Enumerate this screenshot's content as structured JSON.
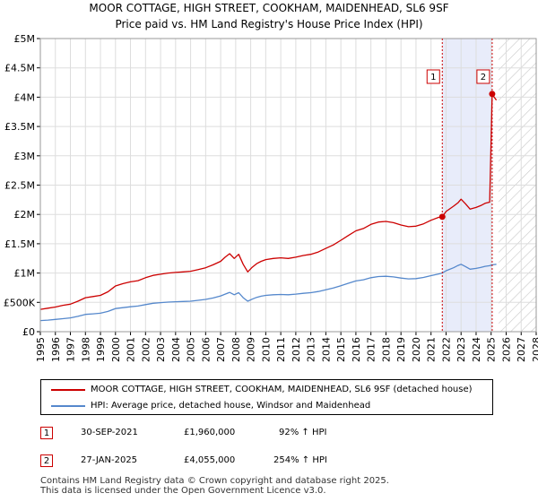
{
  "chart_data": {
    "type": "line",
    "title": "MOOR COTTAGE, HIGH STREET, COOKHAM, MAIDENHEAD, SL6 9SF",
    "subtitle": "Price paid vs. HM Land Registry's House Price Index (HPI)",
    "xlabel": "",
    "ylabel": "",
    "xlim": [
      1995,
      2028
    ],
    "ylim": [
      0,
      5000000
    ],
    "x_ticks": [
      "1995",
      "1996",
      "1997",
      "1998",
      "1999",
      "2000",
      "2001",
      "2002",
      "2003",
      "2004",
      "2005",
      "2006",
      "2007",
      "2008",
      "2009",
      "2010",
      "2011",
      "2012",
      "2013",
      "2014",
      "2015",
      "2016",
      "2017",
      "2018",
      "2019",
      "2020",
      "2021",
      "2022",
      "2023",
      "2024",
      "2025",
      "2026",
      "2027",
      "2028"
    ],
    "y_ticks": [
      {
        "value": 0,
        "label": "£0"
      },
      {
        "value": 500000,
        "label": "£500K"
      },
      {
        "value": 1000000,
        "label": "£1M"
      },
      {
        "value": 1500000,
        "label": "£1.5M"
      },
      {
        "value": 2000000,
        "label": "£2M"
      },
      {
        "value": 2500000,
        "label": "£2.5M"
      },
      {
        "value": 3000000,
        "label": "£3M"
      },
      {
        "value": 3500000,
        "label": "£3.5M"
      },
      {
        "value": 4000000,
        "label": "£4M"
      },
      {
        "value": 4500000,
        "label": "£4.5M"
      },
      {
        "value": 5000000,
        "label": "£5M"
      }
    ],
    "grid": true,
    "shaded_region": {
      "x_start": 2021.75,
      "x_end": 2025.07,
      "color": "#e8ecfa"
    },
    "forecast_hatch": {
      "x_start": 2025.5,
      "x_end": 2028
    },
    "series": [
      {
        "name": "MOOR COTTAGE, HIGH STREET, COOKHAM, MAIDENHEAD, SL6 9SF (detached house)",
        "color": "#cc0000",
        "x": [
          1995,
          1995.5,
          1996,
          1996.5,
          1997,
          1997.5,
          1998,
          1998.5,
          1999,
          1999.5,
          2000,
          2000.5,
          2001,
          2001.5,
          2002,
          2002.5,
          2003,
          2003.5,
          2004,
          2004.5,
          2005,
          2005.5,
          2006,
          2006.5,
          2007,
          2007.3,
          2007.6,
          2007.9,
          2008.2,
          2008.5,
          2008.8,
          2009.1,
          2009.4,
          2009.7,
          2010,
          2010.5,
          2011,
          2011.5,
          2012,
          2012.5,
          2013,
          2013.5,
          2014,
          2014.5,
          2015,
          2015.5,
          2016,
          2016.5,
          2017,
          2017.5,
          2018,
          2018.5,
          2019,
          2019.5,
          2020,
          2020.5,
          2021,
          2021.5,
          2021.75,
          2022,
          2022.5,
          2022.8,
          2023,
          2023.3,
          2023.6,
          2024,
          2024.3,
          2024.6,
          2024.9,
          2025.07,
          2025.2,
          2025.35
        ],
        "y": [
          380000,
          400000,
          420000,
          450000,
          470000,
          520000,
          580000,
          600000,
          620000,
          680000,
          780000,
          820000,
          850000,
          870000,
          920000,
          960000,
          980000,
          1000000,
          1010000,
          1020000,
          1030000,
          1060000,
          1090000,
          1140000,
          1200000,
          1270000,
          1330000,
          1250000,
          1320000,
          1150000,
          1020000,
          1100000,
          1160000,
          1200000,
          1230000,
          1250000,
          1260000,
          1250000,
          1270000,
          1300000,
          1320000,
          1360000,
          1420000,
          1480000,
          1560000,
          1640000,
          1720000,
          1760000,
          1830000,
          1870000,
          1880000,
          1860000,
          1820000,
          1790000,
          1800000,
          1840000,
          1900000,
          1950000,
          1960000,
          2050000,
          2140000,
          2200000,
          2260000,
          2180000,
          2090000,
          2120000,
          2150000,
          2190000,
          2210000,
          4055000,
          4000000,
          3950000
        ]
      },
      {
        "name": "HPI: Average price, detached house, Windsor and Maidenhead",
        "color": "#5588cc",
        "x": [
          1995,
          1995.5,
          1996,
          1996.5,
          1997,
          1997.5,
          1998,
          1998.5,
          1999,
          1999.5,
          2000,
          2000.5,
          2001,
          2001.5,
          2002,
          2002.5,
          2003,
          2003.5,
          2004,
          2004.5,
          2005,
          2005.5,
          2006,
          2006.5,
          2007,
          2007.3,
          2007.6,
          2007.9,
          2008.2,
          2008.5,
          2008.8,
          2009.1,
          2009.4,
          2009.7,
          2010,
          2010.5,
          2011,
          2011.5,
          2012,
          2012.5,
          2013,
          2013.5,
          2014,
          2014.5,
          2015,
          2015.5,
          2016,
          2016.5,
          2017,
          2017.5,
          2018,
          2018.5,
          2019,
          2019.5,
          2020,
          2020.5,
          2021,
          2021.5,
          2021.75,
          2022,
          2022.5,
          2022.8,
          2023,
          2023.3,
          2023.6,
          2024,
          2024.3,
          2024.6,
          2024.9,
          2025.07,
          2025.2,
          2025.35
        ],
        "y": [
          190000,
          198000,
          210000,
          222000,
          235000,
          262000,
          295000,
          305000,
          315000,
          345000,
          395000,
          410000,
          425000,
          438000,
          462000,
          485000,
          495000,
          505000,
          510000,
          515000,
          520000,
          535000,
          550000,
          575000,
          610000,
          640000,
          670000,
          630000,
          665000,
          580000,
          520000,
          555000,
          585000,
          605000,
          620000,
          630000,
          635000,
          630000,
          640000,
          655000,
          665000,
          685000,
          715000,
          745000,
          785000,
          825000,
          865000,
          885000,
          920000,
          940000,
          945000,
          935000,
          915000,
          900000,
          905000,
          925000,
          955000,
          985000,
          1000000,
          1040000,
          1090000,
          1130000,
          1150000,
          1110000,
          1065000,
          1080000,
          1095000,
          1115000,
          1125000,
          1140000,
          1145000,
          1150000
        ]
      }
    ],
    "annotations": [
      {
        "label": "1",
        "x": 2021.75,
        "y": 1960000,
        "date": "30-SEP-2021",
        "price": "£1,960,000",
        "hpi": "92% ↑ HPI"
      },
      {
        "label": "2",
        "x": 2025.07,
        "y": 4055000,
        "date": "27-JAN-2025",
        "price": "£4,055,000",
        "hpi": "254% ↑ HPI"
      }
    ]
  },
  "footer": {
    "line1": "Contains HM Land Registry data © Crown copyright and database right 2025.",
    "line2": "This data is licensed under the Open Government Licence v3.0."
  }
}
